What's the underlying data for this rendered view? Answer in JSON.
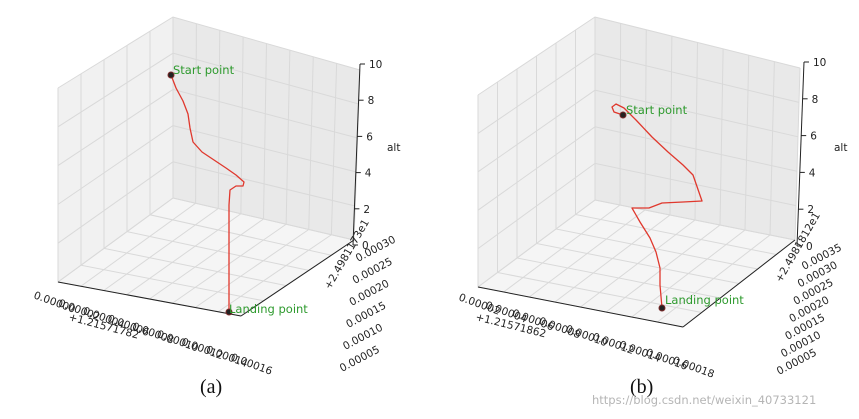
{
  "chart_data": [
    {
      "type": "line3d",
      "caption": "(a)",
      "zlabel": "alt",
      "x_tick_labels": [
        "0.00000",
        "0.00002",
        "0.00004",
        "0.00006",
        "0.00008",
        "0.00010",
        "0.00012",
        "0.00014",
        "0.00016"
      ],
      "x_offset": "+1.21571782",
      "y_tick_labels": [
        "0.00005",
        "0.00010",
        "0.00015",
        "0.00020",
        "0.00025",
        "0.00030"
      ],
      "y_offset": "+2.4981173e1",
      "z_tick_labels": [
        "0",
        "2",
        "4",
        "6",
        "8",
        "10"
      ],
      "zlim": [
        0,
        10
      ],
      "annotations": [
        "Start point",
        "Landing point"
      ],
      "series": [
        {
          "color": "#e0382d",
          "points": [
            [
              171,
              75
            ],
            [
              176,
              88
            ],
            [
              183,
              101
            ],
            [
              188,
              114
            ],
            [
              190,
              128
            ],
            [
              193,
              142
            ],
            [
              202,
              152
            ],
            [
              214,
              160
            ],
            [
              226,
              168
            ],
            [
              236,
              175
            ],
            [
              244,
              182
            ],
            [
              243,
              186
            ],
            [
              236,
              186
            ],
            [
              230,
              190
            ],
            [
              229,
              205
            ],
            [
              229,
              230
            ],
            [
              229,
              260
            ],
            [
              229,
              290
            ],
            [
              229,
              312
            ]
          ]
        }
      ],
      "markers": [
        [
          171,
          75
        ],
        [
          229,
          312
        ]
      ]
    },
    {
      "type": "line3d",
      "caption": "(b)",
      "zlabel": "alt",
      "x_tick_labels": [
        "0.00002",
        "0.00004",
        "0.00006",
        "0.00008",
        "0.00010",
        "0.00012",
        "0.00014",
        "0.00016",
        "0.00018"
      ],
      "x_offset": "+1.21571862",
      "y_tick_labels": [
        "0.00005",
        "0.00010",
        "0.00015",
        "0.00020",
        "0.00025",
        "0.00030",
        "0.00035"
      ],
      "y_offset": "+2.4981812e1",
      "z_tick_labels": [
        "0",
        "2",
        "4",
        "6",
        "8",
        "10"
      ],
      "zlim": [
        0,
        10
      ],
      "annotations": [
        "Start point",
        "Landing point"
      ],
      "series": [
        {
          "color": "#e0382d",
          "points": [
            [
              623,
              115
            ],
            [
              614,
              112
            ],
            [
              612,
              107
            ],
            [
              616,
              104
            ],
            [
              624,
              108
            ],
            [
              636,
              120
            ],
            [
              652,
              137
            ],
            [
              668,
              152
            ],
            [
              683,
              165
            ],
            [
              693,
              175
            ],
            [
              702,
              201
            ],
            [
              683,
              202
            ],
            [
              662,
              203
            ],
            [
              649,
              208
            ],
            [
              632,
              208
            ],
            [
              640,
              222
            ],
            [
              650,
              238
            ],
            [
              656,
              252
            ],
            [
              660,
              268
            ],
            [
              660,
              285
            ],
            [
              662,
              308
            ]
          ]
        }
      ],
      "markers": [
        [
          623,
          115
        ],
        [
          662,
          308
        ]
      ]
    }
  ],
  "watermark": "https://blog.csdn.net/weixin_40733121"
}
